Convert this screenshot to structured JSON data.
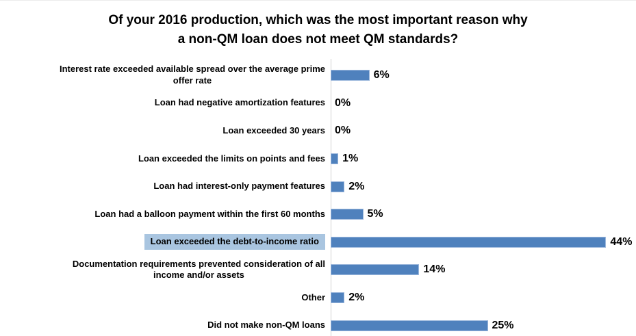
{
  "chart_data": {
    "type": "bar",
    "orientation": "horizontal",
    "title": "Of your 2016 production, which was the most important reason why\na non-QM loan does not meet QM standards?",
    "categories": [
      "Interest rate exceeded available spread over the average prime\noffer rate",
      "Loan had negative amortization features",
      "Loan exceeded 30 years",
      "Loan exceeded the limits on points and fees",
      "Loan had interest-only payment features",
      "Loan had a balloon payment within the first 60 months",
      "Loan exceeded the debt-to-income ratio",
      "Documentation requirements prevented consideration of all\nincome and/or assets",
      "Other",
      "Did not make non-QM loans"
    ],
    "values": [
      6,
      0,
      0,
      1,
      2,
      5,
      44,
      14,
      2,
      25
    ],
    "value_labels": [
      "6%",
      "0%",
      "0%",
      "1%",
      "2%",
      "5%",
      "44%",
      "14%",
      "2%",
      "25%"
    ],
    "highlighted_category_index": 6,
    "xlabel": "",
    "ylabel": "",
    "xlim": [
      0,
      48
    ],
    "grid": false,
    "legend": null,
    "data_labels_shown": true
  },
  "colors": {
    "bar": "#4f81bd",
    "bar_border": "#9db8dc",
    "label_highlight": "#a9c5e0",
    "axis": "#d2d2d2",
    "text": "#000000"
  }
}
